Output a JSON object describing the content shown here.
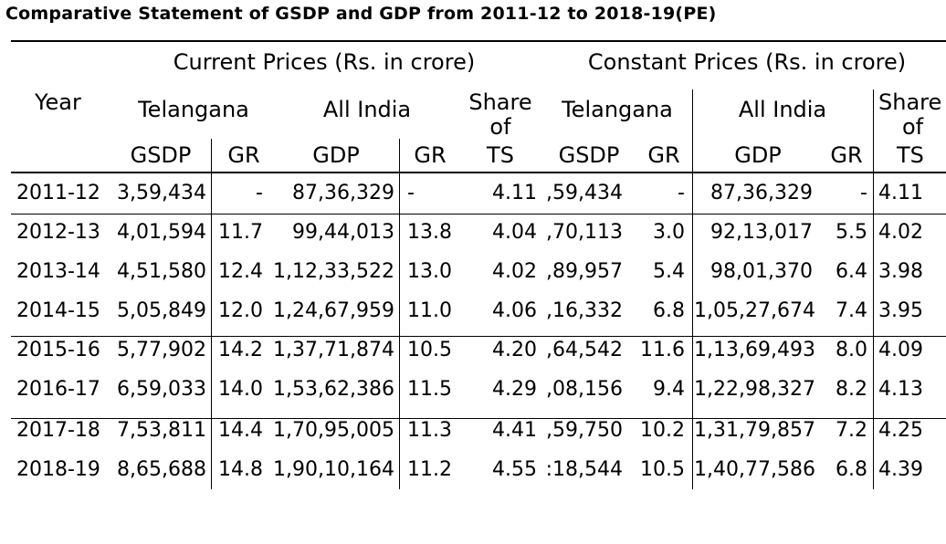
{
  "title": "Comparative Statement of GSDP and GDP from 2011-12 to 2018-19(PE)",
  "header": {
    "current_prices": "Current Prices (Rs. in crore)",
    "constant_prices": "Constant Prices (Rs. in crore)",
    "year": "Year",
    "telangana": "Telangana",
    "all_india": "All India",
    "share_line1": "Share",
    "share_line2": "of",
    "share_line3": "TS",
    "gsdp": "GSDP",
    "gdp": "GDP",
    "gr": "GR"
  },
  "rows": [
    {
      "year": "2011-12",
      "cur_gsdp": "3,59,434",
      "cur_gsdp_gr": "-",
      "cur_gdp": "87,36,329",
      "cur_gdp_gr": "-",
      "cur_share": "4.11",
      "con_gsdp": ",59,434",
      "con_gsdp_gr": "-",
      "con_gdp": "87,36,329",
      "con_gdp_gr": "-",
      "con_share": "4.11"
    },
    {
      "year": "2012-13",
      "cur_gsdp": "4,01,594",
      "cur_gsdp_gr": "11.7",
      "cur_gdp": "99,44,013",
      "cur_gdp_gr": "13.8",
      "cur_share": "4.04",
      "con_gsdp": ",70,113",
      "con_gsdp_gr": "3.0",
      "con_gdp": "92,13,017",
      "con_gdp_gr": "5.5",
      "con_share": "4.02"
    },
    {
      "year": "2013-14",
      "cur_gsdp": "4,51,580",
      "cur_gsdp_gr": "12.4",
      "cur_gdp": "1,12,33,522",
      "cur_gdp_gr": "13.0",
      "cur_share": "4.02",
      "con_gsdp": ",89,957",
      "con_gsdp_gr": "5.4",
      "con_gdp": "98,01,370",
      "con_gdp_gr": "6.4",
      "con_share": "3.98"
    },
    {
      "year": "2014-15",
      "cur_gsdp": "5,05,849",
      "cur_gsdp_gr": "12.0",
      "cur_gdp": "1,24,67,959",
      "cur_gdp_gr": "11.0",
      "cur_share": "4.06",
      "con_gsdp": ",16,332",
      "con_gsdp_gr": "6.8",
      "con_gdp": "1,05,27,674",
      "con_gdp_gr": "7.4",
      "con_share": "3.95"
    },
    {
      "year": "2015-16",
      "cur_gsdp": "5,77,902",
      "cur_gsdp_gr": "14.2",
      "cur_gdp": "1,37,71,874",
      "cur_gdp_gr": "10.5",
      "cur_share": "4.20",
      "con_gsdp": ",64,542",
      "con_gsdp_gr": "11.6",
      "con_gdp": "1,13,69,493",
      "con_gdp_gr": "8.0",
      "con_share": "4.09"
    },
    {
      "year": "2016-17",
      "cur_gsdp": "6,59,033",
      "cur_gsdp_gr": "14.0",
      "cur_gdp": "1,53,62,386",
      "cur_gdp_gr": "11.5",
      "cur_share": "4.29",
      "con_gsdp": ",08,156",
      "con_gsdp_gr": "9.4",
      "con_gdp": "1,22,98,327",
      "con_gdp_gr": "8.2",
      "con_share": "4.13"
    },
    {
      "year": "2017-18",
      "cur_gsdp": "7,53,811",
      "cur_gsdp_gr": "14.4",
      "cur_gdp": "1,70,95,005",
      "cur_gdp_gr": "11.3",
      "cur_share": "4.41",
      "con_gsdp": ",59,750",
      "con_gsdp_gr": "10.2",
      "con_gdp": "1,31,79,857",
      "con_gdp_gr": "7.2",
      "con_share": "4.25"
    },
    {
      "year": "2018-19",
      "cur_gsdp": "8,65,688",
      "cur_gsdp_gr": "14.8",
      "cur_gdp": "1,90,10,164",
      "cur_gdp_gr": "11.2",
      "cur_share": "4.55",
      "con_gsdp": ":18,544",
      "con_gsdp_gr": "10.5",
      "con_gdp": "1,40,77,586",
      "con_gdp_gr": "6.8",
      "con_share": "4.39"
    }
  ]
}
